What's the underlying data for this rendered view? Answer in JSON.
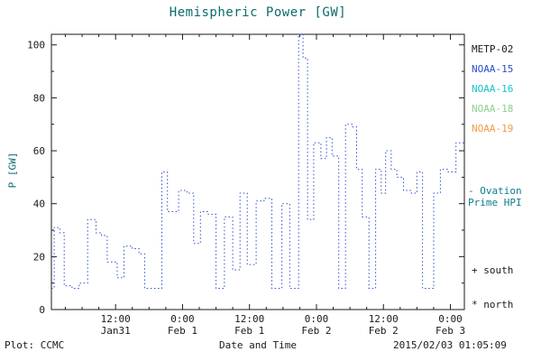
{
  "title": "Hemispheric Power [GW]",
  "accent_color": "#0c6b6b",
  "y_axis_label": "P [GW]",
  "x_axis_label": "Date and Time",
  "footer": {
    "plot_source": "Plot: CCMC",
    "timestamp": "2015/02/03 01:05:09"
  },
  "legend": {
    "satellites": [
      {
        "label": "METP-02",
        "color": "#1a1a1a"
      },
      {
        "label": "NOAA-15",
        "color": "#2a4fd0"
      },
      {
        "label": "NOAA-16",
        "color": "#17c3c9"
      },
      {
        "label": "NOAA-18",
        "color": "#8ed08e"
      },
      {
        "label": "NOAA-19",
        "color": "#f49b42"
      }
    ],
    "ovation_line1": "- Ovation",
    "ovation_line2": "Prime HPI",
    "ovation_color": "#0d7d8c",
    "south_label": "+ south",
    "north_label": "* north"
  },
  "chart_data": {
    "type": "line",
    "line_style": "dotted-step",
    "title": "Hemispheric Power [GW]",
    "xlabel": "Date and Time",
    "ylabel": "P [GW]",
    "x_unit": "hours since 2015-01-31 00:00 UT",
    "xlim": [
      0.5,
      74.5
    ],
    "ylim": [
      0,
      104
    ],
    "grid": false,
    "y_ticks": [
      0,
      20,
      40,
      60,
      80,
      100
    ],
    "x_ticks": [
      {
        "value": 12,
        "time": "12:00",
        "date": "Jan31"
      },
      {
        "value": 24,
        "time": "0:00",
        "date": "Feb 1"
      },
      {
        "value": 36,
        "time": "12:00",
        "date": "Feb 1"
      },
      {
        "value": 48,
        "time": "0:00",
        "date": "Feb 2"
      },
      {
        "value": 60,
        "time": "12:00",
        "date": "Feb 2"
      },
      {
        "value": 72,
        "time": "0:00",
        "date": "Feb 3"
      }
    ],
    "series": [
      {
        "name": "NOAA-15 Hemispheric Power",
        "color": "#2a4fd0",
        "points": [
          [
            0.5,
            8
          ],
          [
            1.0,
            31
          ],
          [
            2.0,
            29
          ],
          [
            2.8,
            9
          ],
          [
            4.2,
            8
          ],
          [
            5.5,
            10
          ],
          [
            7.0,
            34
          ],
          [
            8.5,
            29
          ],
          [
            9.5,
            28
          ],
          [
            10.5,
            18
          ],
          [
            12.3,
            12
          ],
          [
            13.5,
            24
          ],
          [
            15.0,
            23
          ],
          [
            16.2,
            21
          ],
          [
            17.2,
            8
          ],
          [
            20.3,
            52
          ],
          [
            21.3,
            37
          ],
          [
            23.3,
            45
          ],
          [
            24.8,
            44
          ],
          [
            26.0,
            25
          ],
          [
            27.2,
            37
          ],
          [
            28.6,
            36
          ],
          [
            30.0,
            8
          ],
          [
            31.5,
            35
          ],
          [
            33.0,
            15
          ],
          [
            34.3,
            44
          ],
          [
            35.6,
            17
          ],
          [
            37.2,
            41
          ],
          [
            38.6,
            42
          ],
          [
            40.0,
            8
          ],
          [
            41.8,
            40
          ],
          [
            43.2,
            8
          ],
          [
            44.8,
            104
          ],
          [
            45.6,
            95
          ],
          [
            46.4,
            34
          ],
          [
            47.5,
            63
          ],
          [
            48.8,
            57
          ],
          [
            49.8,
            65
          ],
          [
            50.8,
            58
          ],
          [
            52.0,
            8
          ],
          [
            53.2,
            70
          ],
          [
            54.4,
            69
          ],
          [
            55.2,
            53
          ],
          [
            56.2,
            35
          ],
          [
            57.4,
            8
          ],
          [
            58.6,
            53
          ],
          [
            59.6,
            44
          ],
          [
            60.4,
            60
          ],
          [
            61.4,
            53
          ],
          [
            62.4,
            50
          ],
          [
            63.6,
            45
          ],
          [
            65.0,
            44
          ],
          [
            66.0,
            52
          ],
          [
            67.0,
            8
          ],
          [
            69.0,
            44
          ],
          [
            70.2,
            53
          ],
          [
            71.6,
            52
          ],
          [
            73.0,
            63
          ],
          [
            74.5,
            63
          ]
        ]
      }
    ]
  }
}
